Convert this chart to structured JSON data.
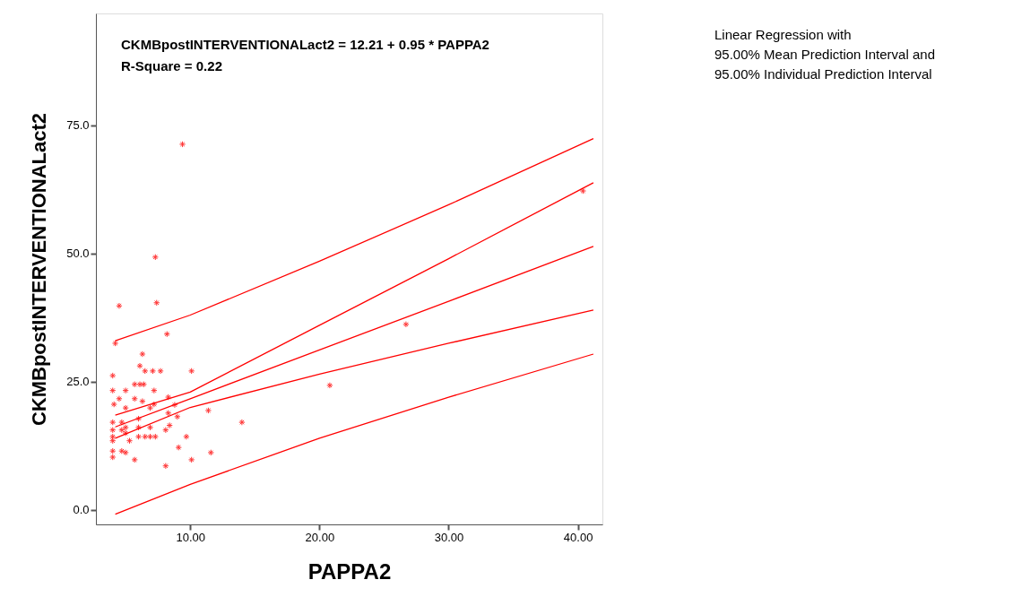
{
  "chart_data": {
    "type": "scatter",
    "xlabel": "PAPPA2",
    "ylabel": "CKMBpostINTERVENTIONALact2",
    "annotations": [
      "CKMBpostINTERVENTIONALact2 = 12.21 + 0.95 * PAPPA2",
      "R-Square = 0.22",
      "Linear Regression with\n95.00% Mean Prediction Interval and\n95.00% Individual Prediction Interval"
    ],
    "xlim": [
      2.7,
      41.9
    ],
    "ylim": [
      -2.8,
      96.8
    ],
    "xticks": [
      {
        "value": 10,
        "label": "10.00"
      },
      {
        "value": 20,
        "label": "20.00"
      },
      {
        "value": 30,
        "label": "30.00"
      },
      {
        "value": 40,
        "label": "40.00"
      }
    ],
    "yticks": [
      {
        "value": 0,
        "label": "0.0"
      },
      {
        "value": 25,
        "label": "25.0"
      },
      {
        "value": 50,
        "label": "50.0"
      },
      {
        "value": 75,
        "label": "75.0"
      }
    ],
    "grid": false,
    "marker": "cross",
    "series": [
      {
        "color": "#ff0000",
        "x": [
          9.4,
          7.3,
          4.5,
          7.4,
          8.2,
          4.2,
          6.3,
          6.1,
          6.5,
          7.7,
          10.1,
          4.0,
          7.1,
          4.0,
          5.0,
          5.7,
          6.1,
          6.4,
          7.2,
          8.3,
          6.3,
          5.7,
          4.5,
          4.1,
          5.0,
          7.2,
          6.9,
          8.8,
          11.4,
          14.0,
          8.3,
          9.0,
          4.0,
          4.7,
          5.0,
          6.0,
          6.0,
          6.9,
          4.0,
          4.7,
          5.0,
          8.1,
          8.4,
          4.0,
          6.0,
          6.5,
          6.9,
          7.3,
          9.7,
          5.3,
          4.0,
          9.1,
          4.0,
          4.7,
          5.0,
          11.6,
          4.0,
          5.7,
          10.1,
          8.1,
          40.4,
          26.7,
          20.8
        ],
        "values": [
          71.3,
          49.3,
          39.8,
          40.4,
          34.3,
          32.5,
          30.4,
          28.1,
          27.1,
          27.1,
          27.1,
          26.2,
          27.1,
          23.3,
          23.3,
          24.5,
          24.5,
          24.5,
          23.3,
          22.0,
          21.2,
          21.7,
          21.7,
          20.6,
          19.9,
          20.6,
          19.9,
          20.5,
          19.4,
          17.1,
          18.9,
          18.2,
          17.1,
          17.1,
          16.1,
          17.8,
          16.1,
          16.1,
          15.6,
          15.6,
          15.0,
          15.6,
          16.5,
          14.3,
          14.3,
          14.3,
          14.3,
          14.3,
          14.3,
          13.5,
          13.5,
          12.2,
          11.5,
          11.5,
          11.2,
          11.2,
          10.3,
          9.8,
          9.8,
          8.6,
          62.2,
          36.2,
          24.3
        ]
      },
      {
        "type": "line",
        "marker": "none",
        "color": "#ff0000",
        "x": [
          4.2,
          10,
          20,
          30,
          41.2
        ],
        "values": [
          33,
          38,
          48.5,
          59.5,
          72.4
        ]
      },
      {
        "type": "line",
        "marker": "none",
        "color": "#ff0000",
        "x": [
          4.2,
          10,
          20,
          30,
          41.2
        ],
        "values": [
          18.5,
          23,
          36,
          49,
          63.8
        ]
      },
      {
        "type": "line",
        "marker": "none",
        "color": "#ff0000",
        "x": [
          4.2,
          10,
          20,
          30,
          41.2
        ],
        "values": [
          16.2,
          21.7,
          31.2,
          40.7,
          51.4
        ]
      },
      {
        "type": "line",
        "marker": "none",
        "color": "#ff0000",
        "x": [
          4.2,
          10,
          20,
          30,
          41.2
        ],
        "values": [
          14,
          20,
          26.5,
          32.5,
          39
        ]
      },
      {
        "type": "line",
        "marker": "none",
        "color": "#ff0000",
        "x": [
          4.2,
          10,
          20,
          30,
          41.2
        ],
        "values": [
          -0.8,
          5,
          14,
          22,
          30.4
        ]
      }
    ]
  }
}
